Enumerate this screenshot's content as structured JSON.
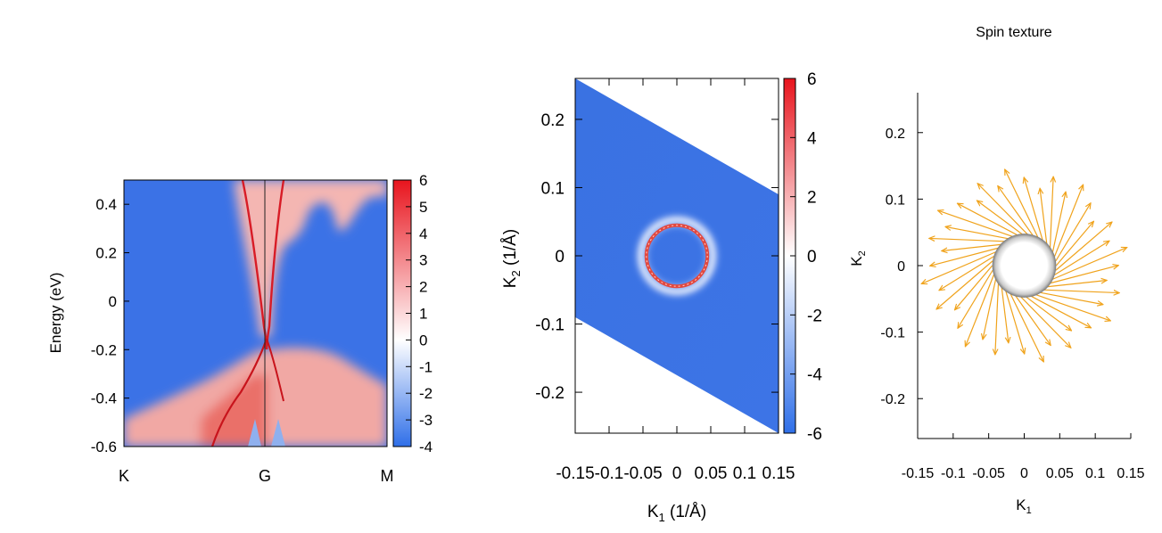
{
  "chart_data": [
    {
      "type": "heatmap",
      "panel": "band-structure",
      "title": "",
      "xlabel": "",
      "ylabel": "Energy (eV)",
      "x_ticks": [
        "K",
        "G",
        "M"
      ],
      "ylim": [
        -0.6,
        0.5
      ],
      "y_ticks": [
        -0.6,
        -0.4,
        -0.2,
        0,
        0.2,
        0.4
      ],
      "y_tick_labels": [
        "-0.6",
        "-0.4",
        "-0.2",
        "0",
        "0.2",
        "0.4"
      ],
      "colorbar": {
        "range": [
          -4,
          6
        ],
        "ticks": [
          -4,
          -3,
          -2,
          -1,
          0,
          1,
          2,
          3,
          4,
          5,
          6
        ],
        "labels": [
          "-4",
          "-3",
          "-2",
          "-1",
          "0",
          "1",
          "2",
          "3",
          "4",
          "5",
          "6"
        ]
      },
      "colormap": {
        "low": "#2f6fe8",
        "mid": "#ffffff",
        "high": "#e8141d"
      },
      "features": {
        "dirac_point_energy": -0.15,
        "bulk_valence_edge_G": -0.2,
        "bulk_conduction_edge_M": 0.45
      }
    },
    {
      "type": "heatmap",
      "panel": "constant-energy-contour",
      "title": "",
      "xlabel": "K1 (1/Å)",
      "ylabel": "K2 (1/Å)",
      "xlim": [
        -0.15,
        0.15
      ],
      "ylim": [
        -0.26,
        0.26
      ],
      "x_ticks": [
        -0.15,
        -0.1,
        -0.05,
        0,
        0.05,
        0.1,
        0.15
      ],
      "x_tick_labels": [
        "-0.15",
        "-0.1",
        "-0.05",
        "0",
        "0.05",
        "0.1",
        "0.15"
      ],
      "y_ticks": [
        -0.2,
        -0.1,
        0,
        0.1,
        0.2
      ],
      "y_tick_labels": [
        "-0.2",
        "-0.1",
        "0",
        "0.1",
        "0.2"
      ],
      "colorbar": {
        "range": [
          -6,
          6
        ],
        "ticks": [
          -6,
          -4,
          -2,
          0,
          2,
          4,
          6
        ],
        "labels": [
          "-6",
          "-4",
          "-2",
          "0",
          "2",
          "4",
          "6"
        ]
      },
      "domain_parallelogram_corners": [
        [
          -0.15,
          0.26
        ],
        [
          0.15,
          0.09
        ],
        [
          0.15,
          -0.26
        ],
        [
          -0.15,
          -0.09
        ]
      ],
      "ring": {
        "center": [
          0,
          0
        ],
        "radius": 0.045
      }
    },
    {
      "type": "scatter",
      "panel": "spin-texture",
      "title": "Spin texture",
      "xlabel": "K1",
      "ylabel": "K2",
      "xlim": [
        -0.15,
        0.15
      ],
      "ylim": [
        -0.26,
        0.26
      ],
      "x_ticks": [
        -0.15,
        -0.1,
        -0.05,
        0,
        0.05,
        0.1,
        0.15
      ],
      "x_tick_labels": [
        "-0.15",
        "-0.1",
        "-0.05",
        "0",
        "0.05",
        "0.1",
        "0.15"
      ],
      "y_ticks": [
        -0.2,
        -0.1,
        0,
        0.1,
        0.2
      ],
      "y_tick_labels": [
        "-0.2",
        "-0.1",
        "0",
        "0.1",
        "0.2"
      ],
      "ring_radius": 0.045,
      "arrow_count": 40,
      "arrow_length": 0.1,
      "arrow_color": "#f0a31c"
    }
  ]
}
